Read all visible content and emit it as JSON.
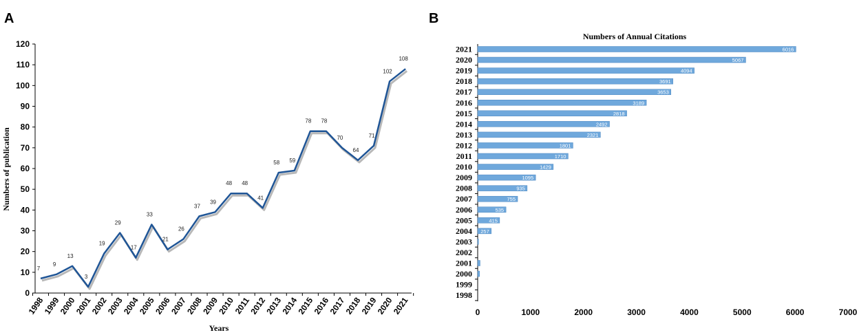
{
  "chart_data": [
    {
      "panel_label": "A",
      "type": "line",
      "title": "",
      "xlabel": "Years",
      "ylabel": "Numbers of publication",
      "x": [
        "1998",
        "1999",
        "2000",
        "2001",
        "2002",
        "2003",
        "2004",
        "2005",
        "2006",
        "2007",
        "2008",
        "2009",
        "2010",
        "2011",
        "2012",
        "2013",
        "2014",
        "2015",
        "2016",
        "2017",
        "2018",
        "2019",
        "2020",
        "2021"
      ],
      "values": [
        7,
        9,
        13,
        3,
        19,
        29,
        17,
        33,
        21,
        26,
        37,
        39,
        48,
        48,
        41,
        58,
        59,
        78,
        78,
        70,
        64,
        71,
        102,
        108
      ],
      "ylim": [
        0,
        120
      ],
      "yticks": [
        0,
        10,
        20,
        30,
        40,
        50,
        60,
        70,
        80,
        90,
        100,
        110,
        120
      ],
      "data_labels": true,
      "grid": false,
      "color": "#1f5596",
      "shadow_color": "#b8b8b8"
    },
    {
      "panel_label": "B",
      "type": "bar",
      "orientation": "horizontal",
      "title": "Numbers of Annual Citations",
      "xlabel": "",
      "ylabel": "",
      "categories": [
        "2021",
        "2020",
        "2019",
        "2018",
        "2017",
        "2016",
        "2015",
        "2014",
        "2013",
        "2012",
        "2011",
        "2010",
        "2009",
        "2008",
        "2007",
        "2006",
        "2005",
        "2004",
        "2003",
        "2002",
        "2001",
        "2000",
        "1999",
        "1998"
      ],
      "values": [
        6016,
        5067,
        4094,
        3691,
        3653,
        3189,
        2818,
        2492,
        2321,
        1801,
        1710,
        1429,
        1095,
        935,
        755,
        535,
        415,
        257,
        16,
        1,
        null,
        null,
        null,
        null
      ],
      "bar_labels": [
        "6016",
        "5067",
        "4094",
        "3691",
        "3653",
        "3189",
        "2818",
        "2492",
        "2321",
        "1801",
        "1710",
        "1429",
        "1095",
        "935",
        "755",
        "535",
        "415",
        "257",
        "16",
        "1",
        "",
        "",
        "",
        ""
      ],
      "bar_lengths_unlabeled": [
        null,
        null,
        null,
        null,
        null,
        null,
        null,
        null,
        null,
        null,
        null,
        null,
        null,
        null,
        null,
        null,
        null,
        null,
        175,
        80,
        45,
        35,
        0,
        0
      ],
      "xlim": [
        0,
        7000
      ],
      "xticks": [
        0,
        1000,
        2000,
        3000,
        4000,
        5000,
        6000,
        7000
      ],
      "grid": false,
      "color": "#6fa8dc"
    }
  ]
}
